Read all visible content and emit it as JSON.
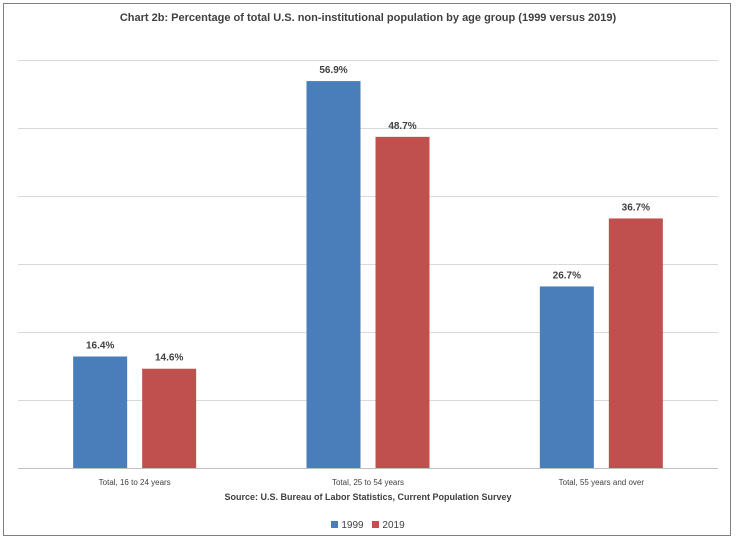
{
  "chart_data": {
    "type": "bar",
    "title": "Chart 2b: Percentage of total U.S. non-institutional population by age group (1999 versus 2019)",
    "source": "Source: U.S. Bureau of Labor Statistics, Current  Population Survey",
    "categories": [
      "Total, 16 to 24 years",
      "Total, 25 to 54 years",
      "Total, 55 years and over"
    ],
    "series": [
      {
        "name": "1999",
        "color": "#4a7ebb",
        "values": [
          16.4,
          56.9,
          26.7
        ],
        "labels": [
          "16.4%",
          "56.9%",
          "26.7%"
        ]
      },
      {
        "name": "2019",
        "color": "#c0504d",
        "values": [
          14.6,
          48.7,
          36.7
        ],
        "labels": [
          "14.6%",
          "48.7%",
          "36.7%"
        ]
      }
    ],
    "ylim": [
      0,
      60
    ],
    "grid": true,
    "legend_position": "bottom"
  }
}
